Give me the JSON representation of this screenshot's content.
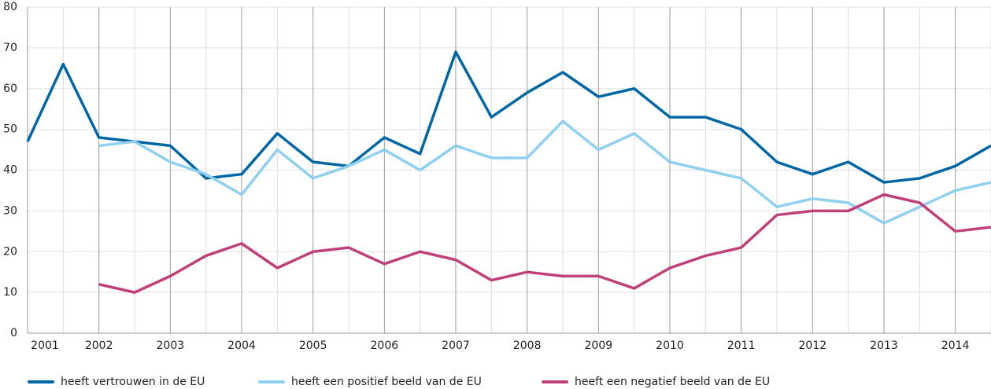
{
  "chart_data": {
    "type": "line",
    "categories": [
      "2001",
      null,
      "2002",
      null,
      "2003",
      null,
      "2004",
      null,
      "2005",
      null,
      "2006",
      null,
      "2007",
      null,
      "2008",
      null,
      "2009",
      null,
      "2010",
      null,
      "2011",
      null,
      "2012",
      null,
      "2013",
      null,
      "2014",
      null
    ],
    "series": [
      {
        "name": "heeft vertrouwen in de EU",
        "color": "#0067a5",
        "values": [
          47,
          66,
          48,
          47,
          46,
          38,
          39,
          49,
          42,
          41,
          48,
          44,
          69,
          53,
          59,
          64,
          58,
          60,
          53,
          53,
          50,
          42,
          39,
          42,
          37,
          38,
          41,
          46
        ]
      },
      {
        "name": "heeft een positief beeld van de EU",
        "color": "#8fd0f0",
        "values": [
          null,
          null,
          46,
          47,
          42,
          39,
          34,
          45,
          38,
          41,
          45,
          40,
          46,
          43,
          43,
          52,
          45,
          49,
          42,
          40,
          38,
          31,
          33,
          32,
          27,
          31,
          35,
          37
        ]
      },
      {
        "name": "heeft een negatief beeld van de EU",
        "color": "#c0407a",
        "values": [
          null,
          null,
          12,
          10,
          14,
          19,
          22,
          16,
          20,
          21,
          17,
          20,
          18,
          13,
          15,
          14,
          14,
          11,
          16,
          19,
          21,
          29,
          30,
          30,
          34,
          32,
          25,
          26
        ]
      }
    ],
    "ylim": [
      0,
      80
    ],
    "yticks": [
      0,
      10,
      20,
      30,
      40,
      50,
      60,
      70,
      80
    ],
    "grid": true,
    "legend": "bottom"
  }
}
